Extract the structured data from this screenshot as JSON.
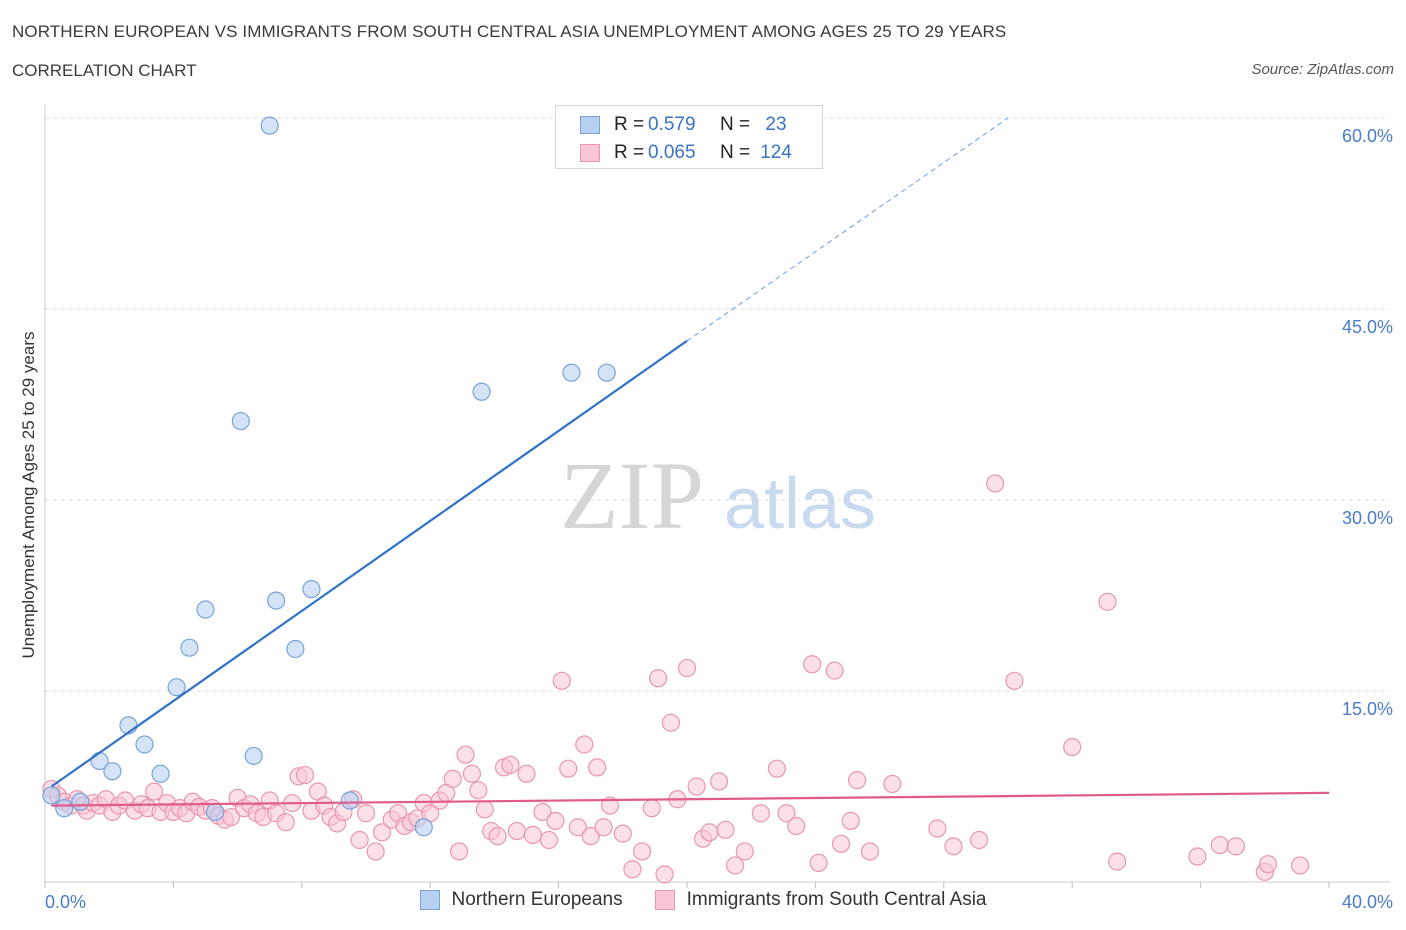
{
  "title": "NORTHERN EUROPEAN VS IMMIGRANTS FROM SOUTH CENTRAL ASIA UNEMPLOYMENT AMONG AGES 25 TO 29 YEARS",
  "subtitle": "CORRELATION CHART",
  "source": "Source: ZipAtlas.com",
  "watermark": {
    "zip": "ZIP",
    "atlas": "atlas"
  },
  "legend_stats": [
    {
      "r_label": "R =",
      "r_value": "0.579",
      "n_label": "N =",
      "n_value": "23"
    },
    {
      "r_label": "R =",
      "r_value": "0.065",
      "n_label": "N =",
      "n_value": "124"
    }
  ],
  "colors": {
    "blue_fill": "#b8d0f0",
    "blue_stroke": "#7aa3d8",
    "blue_line": "#2f72c8",
    "pink_fill": "#f8c6d6",
    "pink_stroke": "#e896b2",
    "pink_line": "#e05a8a",
    "tick_text": "#4a7cc7",
    "grid": "#dcdcdc"
  },
  "chart_data": {
    "type": "scatter",
    "title": "NORTHERN EUROPEAN VS IMMIGRANTS FROM SOUTH CENTRAL ASIA UNEMPLOYMENT AMONG AGES 25 TO 29 YEARS",
    "xlabel": "",
    "ylabel": "Unemployment Among Ages 25 to 29 years",
    "xlim": [
      0,
      40
    ],
    "ylim": [
      0,
      60
    ],
    "x_tick_labels": [
      "0.0%",
      "40.0%"
    ],
    "y_ticks": [
      15,
      30,
      45,
      60
    ],
    "y_tick_labels": [
      "15.0%",
      "30.0%",
      "45.0%",
      "60.0%"
    ],
    "grid": true,
    "legend_position": "bottom",
    "series": [
      {
        "name": "Northern Europeans",
        "color": "#b8d0f0",
        "r": 0.579,
        "n": 23,
        "trend": {
          "x0": 0.2,
          "y0": 7.5,
          "x1": 20.0,
          "y1": 42.5,
          "dashed_to_x": 30.0,
          "dashed_to_y": 60.0
        },
        "points": [
          [
            0.2,
            6.8
          ],
          [
            0.6,
            5.8
          ],
          [
            1.1,
            6.3
          ],
          [
            1.7,
            9.5
          ],
          [
            2.1,
            8.7
          ],
          [
            2.6,
            12.3
          ],
          [
            3.1,
            10.8
          ],
          [
            3.6,
            8.5
          ],
          [
            4.1,
            15.3
          ],
          [
            4.5,
            18.4
          ],
          [
            5.0,
            21.4
          ],
          [
            5.3,
            5.5
          ],
          [
            6.1,
            36.2
          ],
          [
            6.5,
            9.9
          ],
          [
            7.0,
            59.4
          ],
          [
            7.2,
            22.1
          ],
          [
            7.8,
            18.3
          ],
          [
            8.3,
            23.0
          ],
          [
            9.5,
            6.4
          ],
          [
            11.8,
            4.3
          ],
          [
            13.6,
            38.5
          ],
          [
            16.4,
            40.0
          ],
          [
            17.5,
            40.0
          ]
        ]
      },
      {
        "name": "Immigrants from South Central Asia",
        "color": "#f8c6d6",
        "r": 0.065,
        "n": 124,
        "trend": {
          "x0": 0.2,
          "y0": 6.0,
          "x1": 40.0,
          "y1": 7.0
        },
        "points": [
          [
            0.2,
            7.3
          ],
          [
            0.4,
            6.8
          ],
          [
            0.6,
            6.3
          ],
          [
            0.8,
            6.0
          ],
          [
            1.0,
            6.5
          ],
          [
            1.2,
            6.0
          ],
          [
            1.3,
            5.6
          ],
          [
            1.5,
            6.2
          ],
          [
            1.7,
            6.0
          ],
          [
            1.9,
            6.5
          ],
          [
            2.1,
            5.5
          ],
          [
            2.3,
            6.0
          ],
          [
            2.5,
            6.4
          ],
          [
            2.8,
            5.6
          ],
          [
            3.0,
            6.1
          ],
          [
            3.2,
            5.8
          ],
          [
            3.4,
            7.1
          ],
          [
            3.6,
            5.5
          ],
          [
            3.8,
            6.2
          ],
          [
            4.0,
            5.5
          ],
          [
            4.2,
            5.8
          ],
          [
            4.4,
            5.4
          ],
          [
            4.6,
            6.3
          ],
          [
            4.8,
            5.9
          ],
          [
            5.0,
            5.6
          ],
          [
            5.2,
            5.8
          ],
          [
            5.4,
            5.2
          ],
          [
            5.6,
            4.9
          ],
          [
            5.8,
            5.1
          ],
          [
            6.0,
            6.6
          ],
          [
            6.2,
            5.8
          ],
          [
            6.4,
            6.1
          ],
          [
            6.6,
            5.4
          ],
          [
            6.8,
            5.1
          ],
          [
            7.0,
            6.4
          ],
          [
            7.2,
            5.4
          ],
          [
            7.5,
            4.7
          ],
          [
            7.7,
            6.2
          ],
          [
            7.9,
            8.3
          ],
          [
            8.1,
            8.4
          ],
          [
            8.3,
            5.6
          ],
          [
            8.5,
            7.1
          ],
          [
            8.7,
            6.0
          ],
          [
            8.9,
            5.1
          ],
          [
            9.1,
            4.6
          ],
          [
            9.3,
            5.5
          ],
          [
            9.6,
            6.5
          ],
          [
            9.8,
            3.3
          ],
          [
            10.0,
            5.4
          ],
          [
            10.3,
            2.4
          ],
          [
            10.5,
            3.9
          ],
          [
            10.8,
            4.9
          ],
          [
            11.0,
            5.4
          ],
          [
            11.2,
            4.4
          ],
          [
            11.4,
            4.7
          ],
          [
            11.6,
            5.0
          ],
          [
            11.8,
            6.2
          ],
          [
            12.0,
            5.4
          ],
          [
            12.3,
            6.4
          ],
          [
            12.5,
            7.0
          ],
          [
            12.7,
            8.1
          ],
          [
            12.9,
            2.4
          ],
          [
            13.1,
            10.0
          ],
          [
            13.3,
            8.5
          ],
          [
            13.5,
            7.2
          ],
          [
            13.7,
            5.7
          ],
          [
            13.9,
            4.0
          ],
          [
            14.1,
            3.6
          ],
          [
            14.3,
            9.0
          ],
          [
            14.5,
            9.2
          ],
          [
            14.7,
            4.0
          ],
          [
            15.0,
            8.5
          ],
          [
            15.2,
            3.7
          ],
          [
            15.5,
            5.5
          ],
          [
            15.7,
            3.3
          ],
          [
            15.9,
            4.8
          ],
          [
            16.1,
            15.8
          ],
          [
            16.3,
            8.9
          ],
          [
            16.6,
            4.3
          ],
          [
            16.8,
            10.8
          ],
          [
            17.0,
            3.6
          ],
          [
            17.2,
            9.0
          ],
          [
            17.4,
            4.3
          ],
          [
            17.6,
            6.0
          ],
          [
            18.0,
            3.8
          ],
          [
            18.3,
            1.0
          ],
          [
            18.6,
            2.4
          ],
          [
            18.9,
            5.8
          ],
          [
            19.1,
            16.0
          ],
          [
            19.3,
            0.6
          ],
          [
            19.5,
            12.5
          ],
          [
            19.7,
            6.5
          ],
          [
            20.0,
            16.8
          ],
          [
            20.3,
            7.5
          ],
          [
            20.5,
            3.4
          ],
          [
            20.7,
            3.9
          ],
          [
            21.0,
            7.9
          ],
          [
            21.2,
            4.1
          ],
          [
            21.5,
            1.3
          ],
          [
            21.8,
            2.4
          ],
          [
            22.3,
            5.4
          ],
          [
            22.8,
            8.9
          ],
          [
            23.1,
            5.4
          ],
          [
            23.4,
            4.4
          ],
          [
            23.9,
            17.1
          ],
          [
            24.1,
            1.5
          ],
          [
            24.6,
            16.6
          ],
          [
            24.8,
            3.0
          ],
          [
            25.1,
            4.8
          ],
          [
            25.3,
            8.0
          ],
          [
            25.7,
            2.4
          ],
          [
            26.4,
            7.7
          ],
          [
            27.8,
            4.2
          ],
          [
            28.3,
            2.8
          ],
          [
            29.1,
            3.3
          ],
          [
            29.6,
            31.3
          ],
          [
            30.2,
            15.8
          ],
          [
            32.0,
            10.6
          ],
          [
            33.1,
            22.0
          ],
          [
            33.4,
            1.6
          ],
          [
            35.9,
            2.0
          ],
          [
            36.6,
            2.9
          ],
          [
            37.1,
            2.8
          ],
          [
            38.0,
            0.8
          ],
          [
            38.1,
            1.4
          ],
          [
            39.1,
            1.3
          ]
        ]
      }
    ]
  }
}
